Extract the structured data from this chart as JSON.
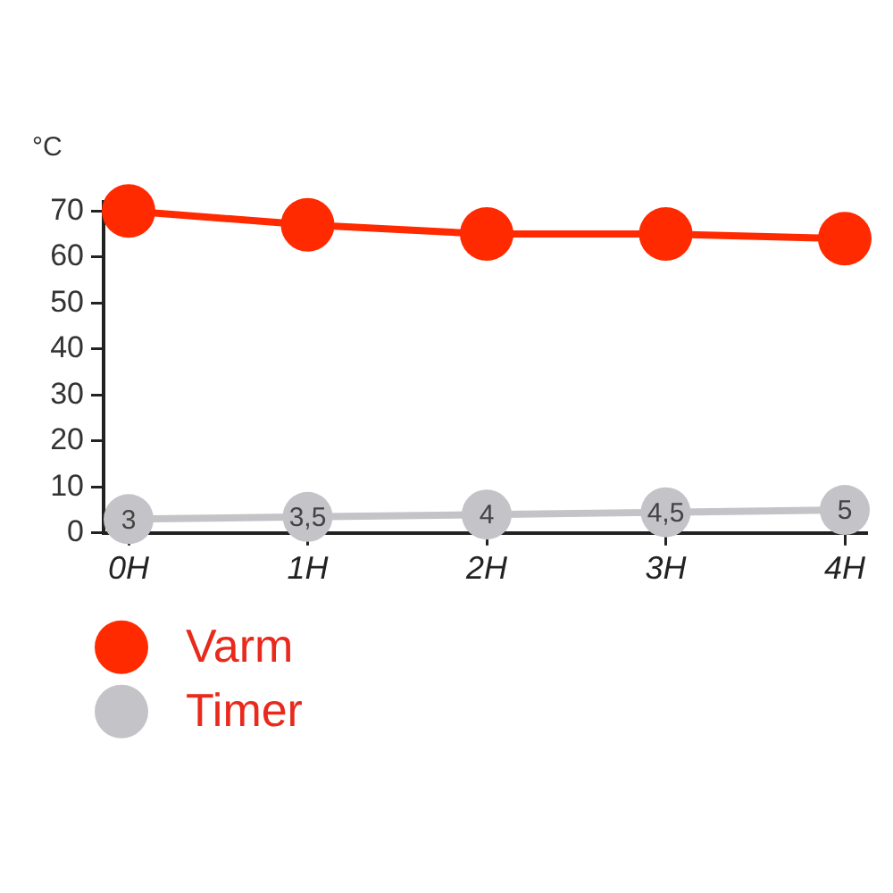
{
  "chart_data": {
    "type": "line",
    "ylabel": "°C",
    "categories": [
      "0H",
      "1H",
      "2H",
      "3H",
      "4H"
    ],
    "series": [
      {
        "name": "Varm",
        "color": "#ff2a00",
        "values": [
          70,
          67,
          65,
          65,
          64
        ]
      },
      {
        "name": "Timer",
        "color": "#c4c4c8",
        "values": [
          3,
          3.5,
          4,
          4.5,
          5
        ],
        "value_labels": [
          "3",
          "3,5",
          "4",
          "4,5",
          "5"
        ]
      }
    ],
    "ylim": [
      0,
      72
    ],
    "yticks": [
      0,
      10,
      20,
      30,
      40,
      50,
      60,
      70
    ],
    "grid": false,
    "legend": "bottom left",
    "marker": "circle",
    "line_style": "solid"
  }
}
